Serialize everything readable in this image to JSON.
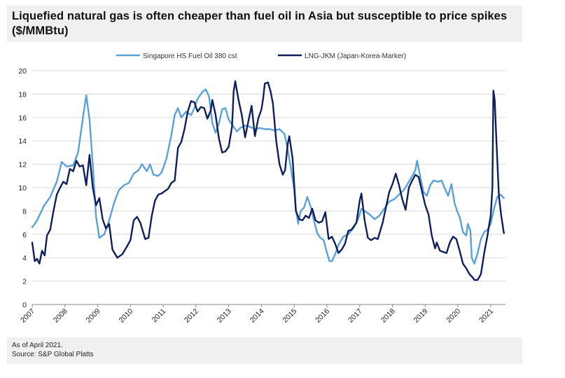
{
  "title": "Liquefied natural gas is often cheaper than fuel oil in Asia but susceptible to price spikes ($/MMBtu)",
  "footer": {
    "as_of": "As of April 2021.",
    "source": "Source: S&P Global Platts"
  },
  "chart_data": {
    "type": "line",
    "title": "Liquefied natural gas is often cheaper than fuel oil in Asia but susceptible to price spikes ($/MMBtu)",
    "xlabel": "",
    "ylabel": "",
    "xlim": [
      2007.0,
      2021.45
    ],
    "ylim": [
      0,
      20
    ],
    "y_ticks": [
      0,
      2,
      4,
      6,
      8,
      10,
      12,
      14,
      16,
      18,
      20
    ],
    "x_tick_labels": [
      "2007",
      "2008",
      "2009",
      "2010",
      "2011",
      "2012",
      "2013",
      "2014",
      "2015",
      "2016",
      "2017",
      "2018",
      "2019",
      "2020",
      "2021"
    ],
    "grid": "horizontal",
    "legend_position": "top",
    "series": [
      {
        "name": "Singapore HS Fuel Oil 380 cst",
        "color": "#5aa2d6",
        "points": [
          [
            2007.0,
            6.6
          ],
          [
            2007.15,
            7.2
          ],
          [
            2007.35,
            8.4
          ],
          [
            2007.55,
            9.2
          ],
          [
            2007.75,
            10.5
          ],
          [
            2007.9,
            12.2
          ],
          [
            2008.05,
            11.8
          ],
          [
            2008.25,
            11.9
          ],
          [
            2008.4,
            13.0
          ],
          [
            2008.55,
            16.0
          ],
          [
            2008.65,
            17.9
          ],
          [
            2008.75,
            15.8
          ],
          [
            2008.85,
            12.0
          ],
          [
            2008.95,
            7.5
          ],
          [
            2009.05,
            5.7
          ],
          [
            2009.2,
            6.0
          ],
          [
            2009.35,
            7.2
          ],
          [
            2009.5,
            8.7
          ],
          [
            2009.65,
            9.8
          ],
          [
            2009.8,
            10.2
          ],
          [
            2009.95,
            10.4
          ],
          [
            2010.1,
            11.2
          ],
          [
            2010.25,
            11.5
          ],
          [
            2010.35,
            12.0
          ],
          [
            2010.5,
            11.4
          ],
          [
            2010.6,
            12.0
          ],
          [
            2010.7,
            11.1
          ],
          [
            2010.85,
            11.0
          ],
          [
            2010.95,
            11.3
          ],
          [
            2011.1,
            12.5
          ],
          [
            2011.25,
            14.5
          ],
          [
            2011.35,
            16.2
          ],
          [
            2011.45,
            16.8
          ],
          [
            2011.55,
            16.0
          ],
          [
            2011.7,
            16.5
          ],
          [
            2011.85,
            16.2
          ],
          [
            2011.95,
            16.8
          ],
          [
            2012.05,
            17.6
          ],
          [
            2012.2,
            18.2
          ],
          [
            2012.3,
            18.4
          ],
          [
            2012.4,
            17.8
          ],
          [
            2012.5,
            15.5
          ],
          [
            2012.6,
            14.7
          ],
          [
            2012.7,
            15.5
          ],
          [
            2012.8,
            16.7
          ],
          [
            2012.9,
            16.8
          ],
          [
            2013.0,
            15.8
          ],
          [
            2013.15,
            15.2
          ],
          [
            2013.25,
            14.8
          ],
          [
            2013.35,
            15.1
          ],
          [
            2013.5,
            15.3
          ],
          [
            2013.65,
            15.2
          ],
          [
            2013.8,
            15.0
          ],
          [
            2013.95,
            15.1
          ],
          [
            2014.1,
            15.0
          ],
          [
            2014.25,
            15.0
          ],
          [
            2014.4,
            14.9
          ],
          [
            2014.55,
            15.0
          ],
          [
            2014.7,
            14.6
          ],
          [
            2014.8,
            13.3
          ],
          [
            2014.9,
            11.6
          ],
          [
            2015.0,
            9.8
          ],
          [
            2015.05,
            8.1
          ],
          [
            2015.12,
            6.9
          ],
          [
            2015.2,
            8.0
          ],
          [
            2015.3,
            8.3
          ],
          [
            2015.4,
            9.2
          ],
          [
            2015.5,
            8.4
          ],
          [
            2015.6,
            7.2
          ],
          [
            2015.7,
            6.1
          ],
          [
            2015.8,
            5.7
          ],
          [
            2015.9,
            5.5
          ],
          [
            2016.0,
            4.4
          ],
          [
            2016.08,
            3.7
          ],
          [
            2016.15,
            3.7
          ],
          [
            2016.25,
            4.3
          ],
          [
            2016.35,
            5.1
          ],
          [
            2016.5,
            5.8
          ],
          [
            2016.65,
            6.0
          ],
          [
            2016.8,
            6.5
          ],
          [
            2016.95,
            7.3
          ],
          [
            2017.05,
            8.2
          ],
          [
            2017.15,
            8.0
          ],
          [
            2017.3,
            7.7
          ],
          [
            2017.45,
            7.3
          ],
          [
            2017.6,
            7.6
          ],
          [
            2017.75,
            8.2
          ],
          [
            2017.9,
            8.8
          ],
          [
            2018.05,
            9.0
          ],
          [
            2018.2,
            9.4
          ],
          [
            2018.35,
            9.8
          ],
          [
            2018.5,
            10.5
          ],
          [
            2018.6,
            11.0
          ],
          [
            2018.7,
            11.5
          ],
          [
            2018.75,
            12.3
          ],
          [
            2018.85,
            10.9
          ],
          [
            2018.95,
            9.6
          ],
          [
            2019.05,
            9.3
          ],
          [
            2019.15,
            10.2
          ],
          [
            2019.25,
            10.6
          ],
          [
            2019.4,
            10.5
          ],
          [
            2019.5,
            10.6
          ],
          [
            2019.6,
            9.9
          ],
          [
            2019.7,
            9.3
          ],
          [
            2019.8,
            10.3
          ],
          [
            2019.9,
            8.6
          ],
          [
            2020.0,
            7.8
          ],
          [
            2020.05,
            7.5
          ],
          [
            2020.15,
            6.2
          ],
          [
            2020.25,
            5.9
          ],
          [
            2020.3,
            6.9
          ],
          [
            2020.38,
            6.3
          ],
          [
            2020.42,
            4.0
          ],
          [
            2020.5,
            3.5
          ],
          [
            2020.6,
            4.4
          ],
          [
            2020.7,
            5.6
          ],
          [
            2020.8,
            6.2
          ],
          [
            2020.9,
            6.4
          ],
          [
            2021.0,
            6.9
          ],
          [
            2021.1,
            8.2
          ],
          [
            2021.2,
            9.2
          ],
          [
            2021.3,
            9.4
          ],
          [
            2021.4,
            9.1
          ]
        ]
      },
      {
        "name": "LNG-JKM (Japan-Korea-Marker)",
        "color": "#0f1f5c",
        "points": [
          [
            2007.0,
            5.3
          ],
          [
            2007.08,
            3.7
          ],
          [
            2007.15,
            3.9
          ],
          [
            2007.22,
            3.5
          ],
          [
            2007.3,
            4.6
          ],
          [
            2007.38,
            4.2
          ],
          [
            2007.45,
            5.9
          ],
          [
            2007.55,
            6.4
          ],
          [
            2007.65,
            8.0
          ],
          [
            2007.75,
            9.4
          ],
          [
            2007.85,
            10.0
          ],
          [
            2007.95,
            10.5
          ],
          [
            2008.05,
            10.3
          ],
          [
            2008.15,
            11.6
          ],
          [
            2008.25,
            11.4
          ],
          [
            2008.35,
            12.3
          ],
          [
            2008.45,
            11.8
          ],
          [
            2008.55,
            11.9
          ],
          [
            2008.65,
            10.2
          ],
          [
            2008.75,
            12.8
          ],
          [
            2008.85,
            10.0
          ],
          [
            2008.95,
            8.5
          ],
          [
            2009.05,
            9.1
          ],
          [
            2009.15,
            7.3
          ],
          [
            2009.25,
            6.5
          ],
          [
            2009.35,
            6.9
          ],
          [
            2009.45,
            4.7
          ],
          [
            2009.6,
            4.0
          ],
          [
            2009.75,
            4.3
          ],
          [
            2009.9,
            5.0
          ],
          [
            2010.0,
            5.5
          ],
          [
            2010.1,
            7.2
          ],
          [
            2010.2,
            7.5
          ],
          [
            2010.3,
            7.0
          ],
          [
            2010.45,
            5.6
          ],
          [
            2010.55,
            5.7
          ],
          [
            2010.65,
            7.6
          ],
          [
            2010.75,
            8.9
          ],
          [
            2010.85,
            9.4
          ],
          [
            2010.95,
            9.5
          ],
          [
            2011.05,
            9.7
          ],
          [
            2011.15,
            9.9
          ],
          [
            2011.25,
            10.4
          ],
          [
            2011.35,
            10.6
          ],
          [
            2011.45,
            13.4
          ],
          [
            2011.55,
            13.9
          ],
          [
            2011.65,
            15.0
          ],
          [
            2011.75,
            16.5
          ],
          [
            2011.85,
            17.4
          ],
          [
            2011.95,
            17.3
          ],
          [
            2012.05,
            16.5
          ],
          [
            2012.15,
            16.9
          ],
          [
            2012.25,
            16.8
          ],
          [
            2012.35,
            15.9
          ],
          [
            2012.45,
            16.6
          ],
          [
            2012.5,
            17.5
          ],
          [
            2012.6,
            16.2
          ],
          [
            2012.7,
            14.2
          ],
          [
            2012.8,
            13.0
          ],
          [
            2012.9,
            13.1
          ],
          [
            2013.0,
            13.5
          ],
          [
            2013.1,
            15.2
          ],
          [
            2013.15,
            18.2
          ],
          [
            2013.2,
            19.1
          ],
          [
            2013.3,
            17.5
          ],
          [
            2013.4,
            16.2
          ],
          [
            2013.5,
            14.3
          ],
          [
            2013.6,
            15.7
          ],
          [
            2013.7,
            17.0
          ],
          [
            2013.8,
            14.4
          ],
          [
            2013.9,
            15.9
          ],
          [
            2014.0,
            16.7
          ],
          [
            2014.05,
            17.6
          ],
          [
            2014.1,
            18.9
          ],
          [
            2014.2,
            19.0
          ],
          [
            2014.28,
            18.2
          ],
          [
            2014.35,
            17.2
          ],
          [
            2014.45,
            14.0
          ],
          [
            2014.55,
            12.0
          ],
          [
            2014.65,
            11.1
          ],
          [
            2014.72,
            11.5
          ],
          [
            2014.8,
            13.7
          ],
          [
            2014.85,
            14.4
          ],
          [
            2014.95,
            12.5
          ],
          [
            2015.05,
            8.0
          ],
          [
            2015.15,
            7.3
          ],
          [
            2015.25,
            7.2
          ],
          [
            2015.35,
            7.6
          ],
          [
            2015.45,
            7.4
          ],
          [
            2015.55,
            8.2
          ],
          [
            2015.65,
            7.2
          ],
          [
            2015.75,
            7.0
          ],
          [
            2015.85,
            7.1
          ],
          [
            2015.95,
            7.9
          ],
          [
            2016.05,
            5.6
          ],
          [
            2016.15,
            5.8
          ],
          [
            2016.25,
            5.2
          ],
          [
            2016.35,
            4.4
          ],
          [
            2016.45,
            4.7
          ],
          [
            2016.55,
            5.2
          ],
          [
            2016.65,
            6.3
          ],
          [
            2016.75,
            6.4
          ],
          [
            2016.9,
            7.0
          ],
          [
            2017.0,
            8.9
          ],
          [
            2017.05,
            9.5
          ],
          [
            2017.15,
            7.2
          ],
          [
            2017.25,
            5.7
          ],
          [
            2017.35,
            5.5
          ],
          [
            2017.45,
            5.7
          ],
          [
            2017.55,
            5.6
          ],
          [
            2017.7,
            7.0
          ],
          [
            2017.8,
            8.3
          ],
          [
            2017.9,
            9.6
          ],
          [
            2018.0,
            10.3
          ],
          [
            2018.1,
            11.2
          ],
          [
            2018.2,
            10.2
          ],
          [
            2018.3,
            9.0
          ],
          [
            2018.4,
            8.1
          ],
          [
            2018.5,
            10.0
          ],
          [
            2018.6,
            10.6
          ],
          [
            2018.7,
            11.1
          ],
          [
            2018.8,
            10.9
          ],
          [
            2018.9,
            9.7
          ],
          [
            2019.0,
            8.5
          ],
          [
            2019.1,
            7.7
          ],
          [
            2019.2,
            5.9
          ],
          [
            2019.3,
            4.8
          ],
          [
            2019.35,
            5.3
          ],
          [
            2019.45,
            4.6
          ],
          [
            2019.55,
            4.5
          ],
          [
            2019.65,
            4.4
          ],
          [
            2019.75,
            5.3
          ],
          [
            2019.85,
            5.8
          ],
          [
            2019.95,
            5.6
          ],
          [
            2020.05,
            4.6
          ],
          [
            2020.15,
            3.5
          ],
          [
            2020.25,
            3.1
          ],
          [
            2020.35,
            2.6
          ],
          [
            2020.42,
            2.4
          ],
          [
            2020.5,
            2.1
          ],
          [
            2020.6,
            2.1
          ],
          [
            2020.7,
            2.6
          ],
          [
            2020.8,
            4.4
          ],
          [
            2020.9,
            5.9
          ],
          [
            2020.95,
            6.8
          ],
          [
            2021.0,
            7.6
          ],
          [
            2021.05,
            10.0
          ],
          [
            2021.08,
            18.3
          ],
          [
            2021.12,
            17.5
          ],
          [
            2021.18,
            13.5
          ],
          [
            2021.25,
            9.3
          ],
          [
            2021.32,
            7.6
          ],
          [
            2021.4,
            6.1
          ]
        ]
      }
    ]
  }
}
